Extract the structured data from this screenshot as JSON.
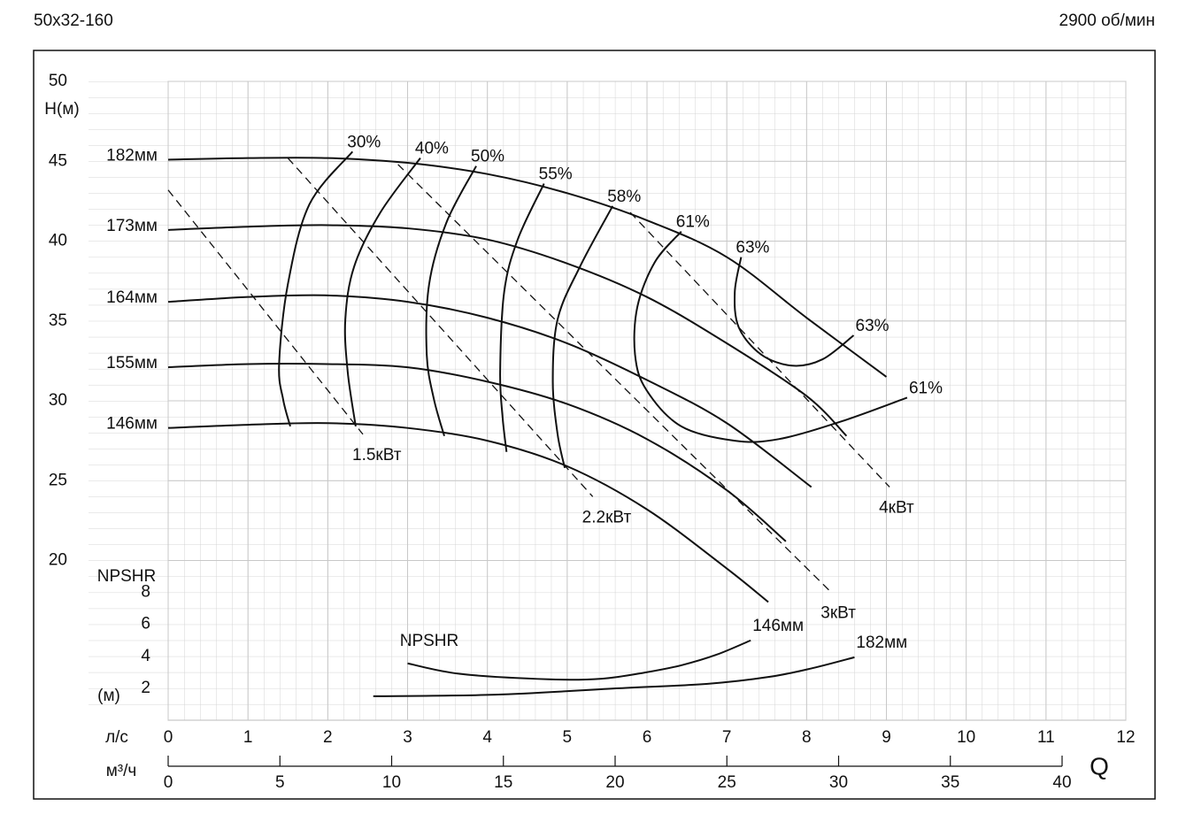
{
  "chart_data": {
    "type": "line",
    "title": "50x32-160",
    "subtitle": "2900 об/мин",
    "x_label": "л/с",
    "x2_label": "м³/ч",
    "q_label": "Q",
    "y_label": "H(м)",
    "y2_label": "NPSHR",
    "y2_unit": "(м)",
    "npshr_label": "NPSHR",
    "xlim": [
      0,
      12
    ],
    "xticks": [
      0,
      1,
      2,
      3,
      4,
      5,
      6,
      7,
      8,
      9,
      10,
      11,
      12
    ],
    "x2lim": [
      0,
      40
    ],
    "x2ticks": [
      0,
      5,
      10,
      15,
      20,
      25,
      30,
      35,
      40
    ],
    "ylim": [
      10,
      50
    ],
    "yticks": [
      20,
      25,
      30,
      35,
      40,
      45,
      50
    ],
    "y2lim": [
      0,
      40
    ],
    "y2ticks": [
      2,
      4,
      6,
      8
    ],
    "grid": true,
    "color": "#111111",
    "series": [
      {
        "name": "182мм",
        "x": [
          0,
          1,
          2,
          3,
          4,
          5,
          6,
          7,
          8,
          9
        ],
        "values": [
          45.1,
          45.2,
          45.2,
          44.9,
          44.2,
          43.0,
          41.3,
          39.0,
          35.2,
          31.5
        ]
      },
      {
        "name": "173мм",
        "x": [
          0,
          1,
          2,
          3,
          4,
          5,
          6,
          7,
          8,
          8.5
        ],
        "values": [
          40.7,
          40.9,
          41.0,
          40.8,
          40.1,
          38.6,
          36.5,
          33.6,
          30.3,
          27.8
        ]
      },
      {
        "name": "164мм",
        "x": [
          0,
          1,
          2,
          3,
          4,
          5,
          6,
          7,
          8.06
        ],
        "values": [
          36.2,
          36.5,
          36.6,
          36.2,
          35.2,
          33.6,
          31.3,
          28.6,
          24.6
        ]
      },
      {
        "name": "155мм",
        "x": [
          0,
          1,
          2,
          3,
          4,
          5,
          6,
          7,
          7.74
        ],
        "values": [
          32.1,
          32.3,
          32.3,
          32.1,
          31.2,
          29.8,
          27.6,
          24.4,
          21.2
        ]
      },
      {
        "name": "146мм",
        "x": [
          0,
          1,
          2,
          3,
          4,
          5,
          6,
          7,
          7.52
        ],
        "values": [
          28.3,
          28.5,
          28.6,
          28.3,
          27.5,
          25.9,
          23.2,
          19.5,
          17.4
        ]
      },
      {
        "name": "146мм",
        "axis": "y2",
        "x": [
          3.0,
          3.66,
          4.77,
          5.43,
          5.99,
          6.43,
          6.87,
          7.3
        ],
        "values": [
          3.56,
          2.9,
          2.56,
          2.6,
          3.0,
          3.44,
          4.1,
          5.0
        ]
      },
      {
        "name": "182мм",
        "axis": "y2",
        "x": [
          2.57,
          4.1,
          5.65,
          6.76,
          7.54,
          8.09,
          8.6
        ],
        "values": [
          1.5,
          1.6,
          2.0,
          2.28,
          2.72,
          3.28,
          3.94
        ]
      }
    ],
    "efficiency_curves": [
      {
        "labels": [
          "30%"
        ],
        "x": [
          2.31,
          1.77,
          1.5,
          1.39,
          1.44,
          1.53
        ],
        "values": [
          45.6,
          42.3,
          37.3,
          32.3,
          30.1,
          28.4
        ]
      },
      {
        "labels": [
          "40%"
        ],
        "x": [
          3.16,
          2.66,
          2.33,
          2.22,
          2.25,
          2.35
        ],
        "values": [
          45.2,
          41.8,
          38.4,
          35.1,
          31.8,
          28.4
        ]
      },
      {
        "labels": [
          "50%"
        ],
        "x": [
          3.86,
          3.49,
          3.27,
          3.24,
          3.33,
          3.46
        ],
        "values": [
          44.7,
          41.2,
          37.3,
          32.9,
          30.1,
          27.8
        ]
      },
      {
        "labels": [
          "55%"
        ],
        "x": [
          4.71,
          4.38,
          4.21,
          4.16,
          4.19,
          4.24
        ],
        "values": [
          43.6,
          40.1,
          36.8,
          31.8,
          29.0,
          26.8
        ]
      },
      {
        "labels": [
          "58%"
        ],
        "x": [
          5.57,
          5.16,
          4.88,
          4.82,
          4.88,
          4.97
        ],
        "values": [
          42.2,
          38.4,
          35.1,
          31.2,
          27.9,
          25.8
        ]
      },
      {
        "labels": [
          "61%",
          "61%"
        ],
        "x": [
          6.43,
          6.1,
          5.88,
          5.85,
          5.99,
          6.43,
          7.1,
          7.65,
          8.43,
          9.26
        ],
        "values": [
          40.6,
          38.7,
          35.9,
          32.9,
          30.7,
          28.4,
          27.5,
          27.6,
          28.7,
          30.2
        ]
      },
      {
        "labels": [
          "63%",
          "63%"
        ],
        "x": [
          7.18,
          7.1,
          7.15,
          7.43,
          7.82,
          8.2,
          8.59
        ],
        "values": [
          39.0,
          36.8,
          34.6,
          32.9,
          32.2,
          32.6,
          34.1
        ]
      }
    ],
    "power_lines": [
      {
        "name": "1.5кВт",
        "x": [
          0,
          2.44
        ],
        "values": [
          43.2,
          27.9
        ]
      },
      {
        "name": "2.2кВт",
        "x": [
          1.5,
          5.32
        ],
        "values": [
          45.2,
          24.0
        ]
      },
      {
        "name": "3кВт",
        "x": [
          2.88,
          8.31
        ],
        "values": [
          44.8,
          18.0
        ]
      },
      {
        "name": "4кВт",
        "x": [
          5.79,
          9.04
        ],
        "values": [
          41.8,
          24.6
        ]
      }
    ]
  }
}
